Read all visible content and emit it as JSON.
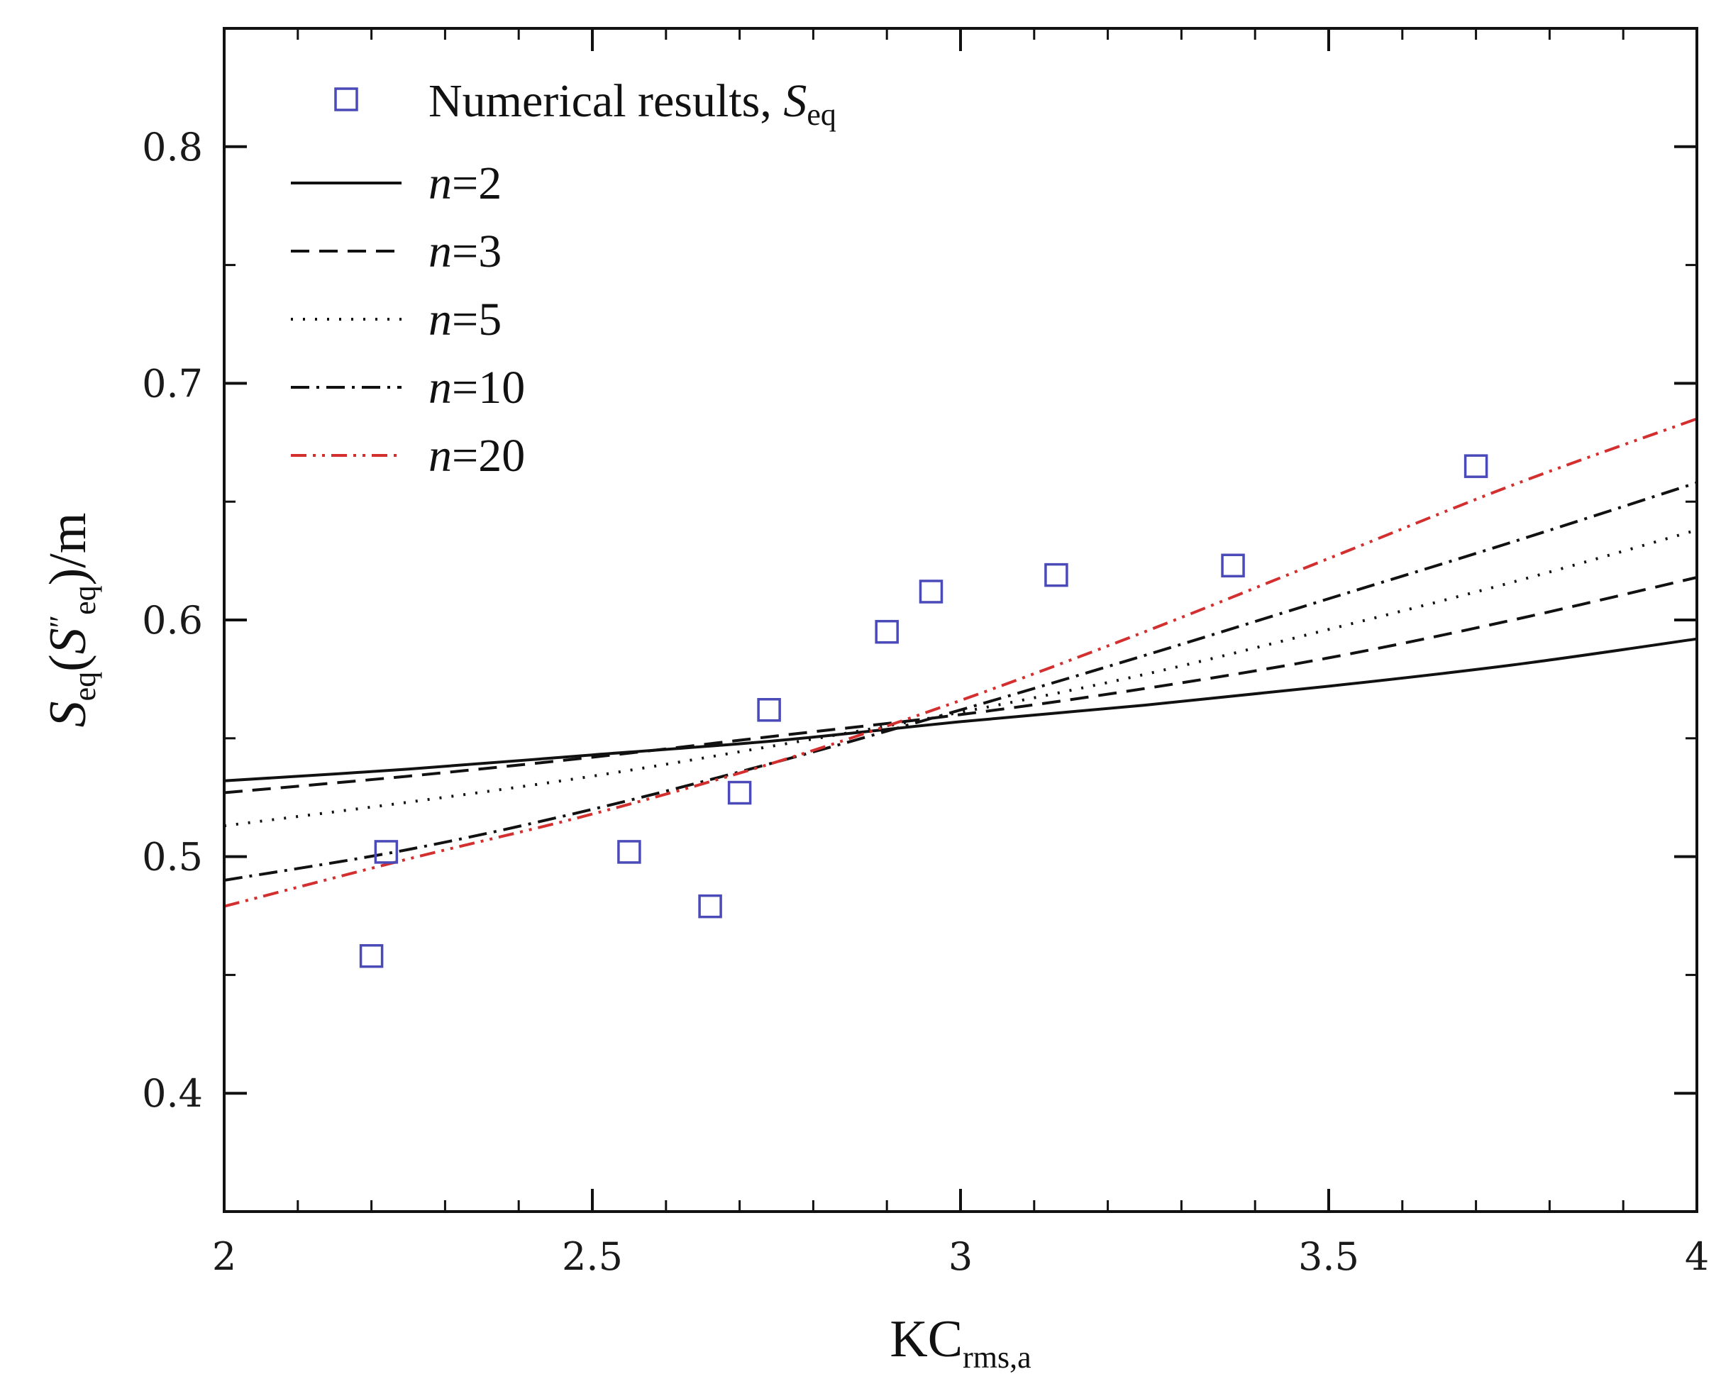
{
  "chart_data": {
    "type": "line",
    "title": "",
    "xlabel": {
      "main": "KC",
      "sub": "rms,a"
    },
    "ylabel": {
      "s1": "S",
      "sub1": "eq",
      "open1": "(",
      "s2": "S",
      "prime": "″",
      "sub2": "eq",
      "close": ")/m"
    },
    "xlim": [
      2,
      4
    ],
    "ylim": [
      0.35,
      0.85
    ],
    "xticks": [
      2,
      2.5,
      3,
      3.5,
      4
    ],
    "xtick_labels": [
      "2",
      "2.5",
      "3",
      "3.5",
      "4"
    ],
    "yticks": [
      0.4,
      0.5,
      0.6,
      0.7,
      0.8
    ],
    "ytick_labels": [
      "0.4",
      "0.5",
      "0.6",
      "0.7",
      "0.8"
    ],
    "x_minor_step": 0.1,
    "y_minor_step": 0.05,
    "legend_position": "top-left",
    "scatter": {
      "name": "Numerical results, ",
      "name_italic": "S",
      "name_sub": "eq",
      "color": "#4a4ab8",
      "points": [
        [
          2.2,
          0.458
        ],
        [
          2.22,
          0.502
        ],
        [
          2.55,
          0.502
        ],
        [
          2.66,
          0.479
        ],
        [
          2.7,
          0.527
        ],
        [
          2.74,
          0.562
        ],
        [
          2.9,
          0.595
        ],
        [
          2.96,
          0.612
        ],
        [
          3.13,
          0.619
        ],
        [
          3.37,
          0.623
        ],
        [
          3.7,
          0.665
        ]
      ]
    },
    "series": [
      {
        "name_italic": "n",
        "name_rest": "=2",
        "color": "#111111",
        "dash": "",
        "x": [
          2.0,
          2.25,
          2.5,
          2.75,
          3.0,
          3.25,
          3.5,
          3.75,
          4.0
        ],
        "y": [
          0.532,
          0.537,
          0.543,
          0.549,
          0.557,
          0.564,
          0.572,
          0.581,
          0.592
        ]
      },
      {
        "name_italic": "n",
        "name_rest": "=3",
        "color": "#111111",
        "dash": "26 14",
        "x": [
          2.0,
          2.25,
          2.5,
          2.75,
          3.0,
          3.25,
          3.5,
          3.75,
          4.0
        ],
        "y": [
          0.527,
          0.534,
          0.542,
          0.551,
          0.56,
          0.571,
          0.584,
          0.6,
          0.618
        ]
      },
      {
        "name_italic": "n",
        "name_rest": "=5",
        "color": "#111111",
        "dash": "3 14",
        "x": [
          2.0,
          2.25,
          2.5,
          2.75,
          3.0,
          3.25,
          3.5,
          3.75,
          4.0
        ],
        "y": [
          0.513,
          0.523,
          0.534,
          0.547,
          0.561,
          0.577,
          0.596,
          0.616,
          0.638
        ]
      },
      {
        "name_italic": "n",
        "name_rest": "=10",
        "color": "#111111",
        "dash": "26 10 4 10",
        "x": [
          2.0,
          2.25,
          2.5,
          2.75,
          3.0,
          3.25,
          3.5,
          3.75,
          4.0
        ],
        "y": [
          0.49,
          0.503,
          0.52,
          0.54,
          0.562,
          0.585,
          0.609,
          0.633,
          0.658
        ]
      },
      {
        "name_italic": "n",
        "name_rest": "=20",
        "color": "#d32f2f",
        "dash": "22 9 4 9 4 9",
        "x": [
          2.0,
          2.25,
          2.5,
          2.75,
          3.0,
          3.25,
          3.5,
          3.75,
          4.0
        ],
        "y": [
          0.479,
          0.499,
          0.518,
          0.54,
          0.566,
          0.595,
          0.626,
          0.657,
          0.685
        ]
      }
    ]
  }
}
